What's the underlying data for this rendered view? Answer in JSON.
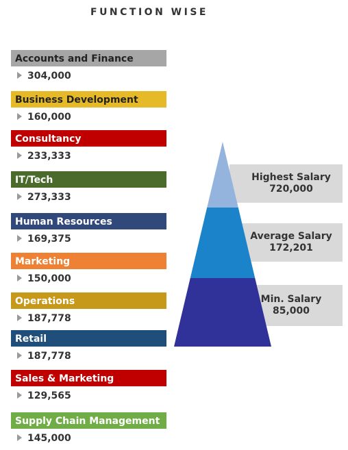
{
  "title": "FUNCTION WISE",
  "functions": [
    {
      "name": "Accounts and Finance",
      "value": "304,000",
      "color": "#a6a6a6",
      "text_color": "#222222"
    },
    {
      "name": "Business Development",
      "value": "160,000",
      "color": "#e6b929",
      "text_color": "#222222"
    },
    {
      "name": "Consultancy",
      "value": "233,333",
      "color": "#c00000",
      "text_color": "#ffffff"
    },
    {
      "name": "IT/Tech",
      "value": "273,333",
      "color": "#4b6b2d",
      "text_color": "#ffffff"
    },
    {
      "name": "Human Resources",
      "value": "169,375",
      "color": "#30497a",
      "text_color": "#ffffff"
    },
    {
      "name": "Marketing",
      "value": "150,000",
      "color": "#ee8134",
      "text_color": "#ffffff"
    },
    {
      "name": "Operations",
      "value": "187,778",
      "color": "#c7991a",
      "text_color": "#ffffff"
    },
    {
      "name": "Retail",
      "value": "187,778",
      "color": "#204e7a",
      "text_color": "#ffffff"
    },
    {
      "name": "Sales & Marketing",
      "value": "129,565",
      "color": "#c00000",
      "text_color": "#ffffff"
    },
    {
      "name": "Supply Chain Management",
      "value": "145,000",
      "color": "#70ad47",
      "text_color": "#ffffff"
    }
  ],
  "pyramid": [
    {
      "label": "Highest Salary",
      "value": "720,000",
      "color": "#94b3dd"
    },
    {
      "label": "Average Salary",
      "value": "172,201",
      "color": "#1a83c9"
    },
    {
      "label": "Min. Salary",
      "value": "85,000",
      "color": "#30329a"
    }
  ]
}
